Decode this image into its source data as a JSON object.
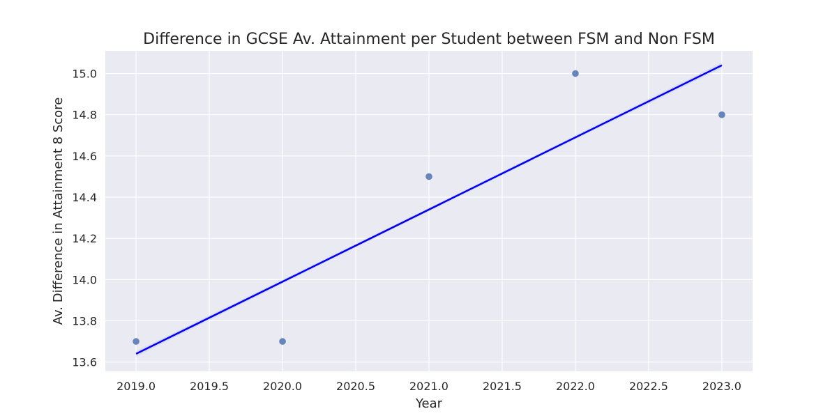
{
  "chart_data": {
    "type": "scatter",
    "title": "Difference in GCSE Av. Attainment per Student between FSM and Non FSM",
    "xlabel": "Year",
    "ylabel": "Av. Difference in Attainment 8 Score",
    "xlim": [
      2018.79,
      2023.21
    ],
    "ylim": [
      13.555,
      15.11
    ],
    "grid": true,
    "x_ticks": [
      2019.0,
      2019.5,
      2020.0,
      2020.5,
      2021.0,
      2021.5,
      2022.0,
      2022.5,
      2023.0
    ],
    "x_tick_labels": [
      "2019.0",
      "2019.5",
      "2020.0",
      "2020.5",
      "2021.0",
      "2021.5",
      "2022.0",
      "2022.5",
      "2023.0"
    ],
    "y_ticks": [
      13.6,
      13.8,
      14.0,
      14.2,
      14.4,
      14.6,
      14.8,
      15.0
    ],
    "y_tick_labels": [
      "13.6",
      "13.8",
      "14.0",
      "14.2",
      "14.4",
      "14.6",
      "14.8",
      "15.0"
    ],
    "points": {
      "x": [
        2019,
        2020,
        2021,
        2022,
        2023
      ],
      "y": [
        13.7,
        13.7,
        14.5,
        15.0,
        14.8
      ]
    },
    "trend_line": {
      "x": [
        2019,
        2023
      ],
      "y": [
        13.64,
        15.04
      ]
    },
    "colors": {
      "background": "#eaeaf2",
      "grid": "#ffffff",
      "points": "#4c72b0",
      "trend_line": "#0000ee",
      "confidence_band": "#c9c9ef"
    }
  }
}
